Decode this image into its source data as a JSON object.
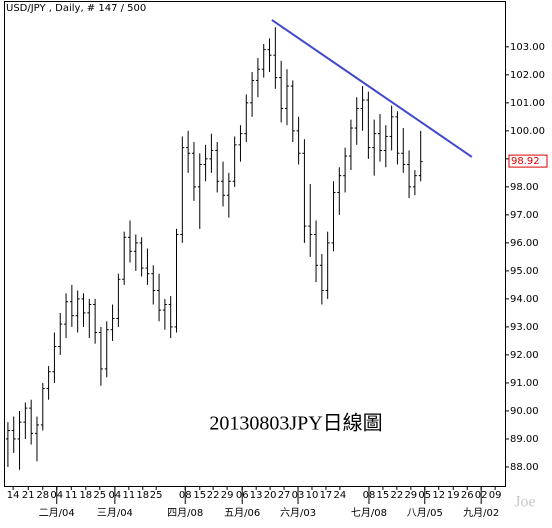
{
  "chart_data": {
    "type": "ohlc",
    "title": "USD/JPY , Daily, # 147 / 500",
    "annotation": "20130803JPY日線圖",
    "watermark": "Joe",
    "color": "#000000",
    "trend_color": "#3f48cc",
    "last_price_color": "#e00000",
    "ohlc": [
      [
        89.0,
        89.6,
        88.0,
        89.3
      ],
      [
        89.3,
        89.8,
        88.5,
        89.0
      ],
      [
        89.0,
        90.0,
        87.9,
        89.6
      ],
      [
        89.6,
        90.3,
        89.0,
        90.1
      ],
      [
        90.1,
        90.4,
        88.8,
        89.2
      ],
      [
        89.2,
        89.8,
        88.2,
        89.5
      ],
      [
        89.5,
        91.0,
        89.3,
        90.8
      ],
      [
        90.8,
        91.6,
        90.4,
        91.4
      ],
      [
        91.4,
        92.8,
        91.0,
        92.3
      ],
      [
        92.3,
        93.5,
        92.0,
        93.1
      ],
      [
        93.1,
        94.2,
        92.6,
        93.9
      ],
      [
        93.9,
        94.5,
        93.0,
        93.4
      ],
      [
        93.4,
        94.3,
        92.8,
        94.0
      ],
      [
        94.0,
        94.2,
        93.0,
        93.5
      ],
      [
        93.5,
        94.0,
        92.6,
        93.8
      ],
      [
        93.8,
        94.0,
        92.4,
        92.8
      ],
      [
        92.8,
        93.0,
        90.9,
        91.5
      ],
      [
        91.5,
        93.2,
        91.2,
        92.9
      ],
      [
        92.9,
        93.8,
        92.5,
        93.3
      ],
      [
        93.3,
        94.9,
        93.0,
        94.7
      ],
      [
        94.7,
        96.4,
        94.5,
        96.2
      ],
      [
        96.2,
        96.8,
        95.3,
        95.7
      ],
      [
        95.7,
        96.3,
        95.0,
        96.0
      ],
      [
        96.0,
        96.2,
        94.8,
        95.1
      ],
      [
        95.1,
        95.8,
        94.5,
        94.9
      ],
      [
        94.9,
        95.2,
        93.8,
        94.3
      ],
      [
        94.3,
        94.9,
        93.2,
        93.6
      ],
      [
        93.6,
        94.0,
        92.9,
        93.8
      ],
      [
        93.8,
        94.1,
        92.6,
        93.0
      ],
      [
        93.0,
        96.5,
        92.8,
        96.3
      ],
      [
        96.3,
        99.8,
        96.0,
        99.4
      ],
      [
        99.4,
        100.0,
        98.5,
        99.2
      ],
      [
        99.2,
        99.6,
        97.5,
        98.0
      ],
      [
        98.0,
        99.2,
        96.5,
        98.8
      ],
      [
        98.8,
        99.5,
        98.2,
        99.0
      ],
      [
        99.0,
        99.9,
        98.5,
        99.3
      ],
      [
        99.3,
        99.6,
        97.8,
        98.2
      ],
      [
        98.2,
        98.9,
        97.3,
        97.7
      ],
      [
        97.7,
        98.5,
        96.9,
        98.2
      ],
      [
        98.2,
        99.8,
        98.0,
        99.5
      ],
      [
        99.5,
        100.2,
        98.9,
        99.9
      ],
      [
        99.9,
        101.3,
        99.6,
        101.0
      ],
      [
        101.0,
        102.1,
        100.5,
        101.8
      ],
      [
        101.8,
        102.6,
        101.2,
        102.2
      ],
      [
        102.2,
        103.1,
        101.9,
        102.9
      ],
      [
        102.9,
        103.3,
        102.1,
        102.7
      ],
      [
        102.7,
        103.7,
        101.5,
        101.9
      ],
      [
        101.9,
        102.5,
        100.3,
        100.8
      ],
      [
        100.8,
        102.2,
        100.2,
        101.6
      ],
      [
        101.6,
        101.8,
        99.6,
        100.0
      ],
      [
        100.0,
        100.5,
        98.8,
        99.2
      ],
      [
        99.2,
        99.7,
        96.0,
        96.6
      ],
      [
        96.6,
        98.1,
        95.5,
        96.3
      ],
      [
        96.3,
        96.8,
        94.6,
        95.2
      ],
      [
        95.2,
        95.6,
        93.8,
        94.3
      ],
      [
        94.3,
        96.4,
        94.0,
        96.0
      ],
      [
        96.0,
        98.2,
        95.7,
        97.8
      ],
      [
        97.8,
        98.7,
        97.0,
        98.4
      ],
      [
        98.4,
        99.4,
        97.8,
        99.1
      ],
      [
        99.1,
        100.4,
        98.6,
        100.1
      ],
      [
        100.1,
        101.2,
        99.5,
        100.8
      ],
      [
        100.8,
        101.6,
        100.0,
        101.1
      ],
      [
        101.1,
        101.4,
        99.0,
        99.4
      ],
      [
        99.4,
        100.4,
        98.4,
        99.9
      ],
      [
        99.9,
        100.6,
        98.9,
        99.3
      ],
      [
        99.3,
        100.2,
        98.7,
        99.8
      ],
      [
        99.8,
        100.9,
        99.3,
        100.5
      ],
      [
        100.5,
        100.7,
        98.8,
        99.2
      ],
      [
        99.2,
        100.1,
        98.5,
        98.8
      ],
      [
        98.8,
        99.3,
        97.6,
        98.0
      ],
      [
        98.0,
        98.6,
        97.7,
        98.4
      ],
      [
        98.4,
        100.0,
        98.2,
        98.9
      ]
    ],
    "last_price": 98.92,
    "trendline": [
      [
        45.4,
        103.96
      ],
      [
        79.8,
        99.07
      ]
    ],
    "xlim": [
      -0.5,
      85.5
    ],
    "ylim": [
      87.32,
      104.6
    ],
    "yticks": [
      {
        "value": 88,
        "label": "88.00"
      },
      {
        "value": 89,
        "label": "89.00"
      },
      {
        "value": 90,
        "label": "90.00"
      },
      {
        "value": 91,
        "label": "91.00"
      },
      {
        "value": 92,
        "label": "92.00"
      },
      {
        "value": 93,
        "label": "93.00"
      },
      {
        "value": 94,
        "label": "94.00"
      },
      {
        "value": 95,
        "label": "95.00"
      },
      {
        "value": 96,
        "label": "96.00"
      },
      {
        "value": 97,
        "label": "97.00"
      },
      {
        "value": 98,
        "label": "98.00"
      },
      {
        "value": 99,
        "label": "99.00"
      },
      {
        "value": 100,
        "label": "100.00"
      },
      {
        "value": 101,
        "label": "101.00"
      },
      {
        "value": 102,
        "label": "102.00"
      },
      {
        "value": 103,
        "label": "103.00"
      }
    ],
    "xticks": [
      {
        "value": 0.9,
        "label": "14"
      },
      {
        "value": 3.5,
        "label": "21"
      },
      {
        "value": 6.0,
        "label": "28"
      },
      {
        "value": 8.4,
        "label": "04"
      },
      {
        "value": 10.9,
        "label": "11"
      },
      {
        "value": 13.4,
        "label": "18"
      },
      {
        "value": 15.8,
        "label": "25"
      },
      {
        "value": 18.4,
        "label": "04"
      },
      {
        "value": 20.8,
        "label": "11"
      },
      {
        "value": 23.2,
        "label": "18"
      },
      {
        "value": 25.5,
        "label": "25"
      },
      {
        "value": 30.5,
        "label": "08"
      },
      {
        "value": 33.0,
        "label": "15"
      },
      {
        "value": 35.3,
        "label": "22"
      },
      {
        "value": 37.7,
        "label": "29"
      },
      {
        "value": 40.3,
        "label": "06"
      },
      {
        "value": 42.7,
        "label": "13"
      },
      {
        "value": 45.1,
        "label": "20"
      },
      {
        "value": 47.5,
        "label": "27"
      },
      {
        "value": 49.9,
        "label": "03"
      },
      {
        "value": 52.3,
        "label": "10"
      },
      {
        "value": 54.7,
        "label": "17"
      },
      {
        "value": 57.1,
        "label": "24"
      },
      {
        "value": 62.1,
        "label": "08"
      },
      {
        "value": 64.5,
        "label": "15"
      },
      {
        "value": 66.9,
        "label": "22"
      },
      {
        "value": 69.3,
        "label": "29"
      },
      {
        "value": 71.7,
        "label": "05"
      },
      {
        "value": 74.1,
        "label": "12"
      },
      {
        "value": 76.6,
        "label": "19"
      },
      {
        "value": 79.0,
        "label": "26"
      },
      {
        "value": 81.4,
        "label": "02"
      },
      {
        "value": 83.8,
        "label": "09"
      }
    ],
    "month_ticks": [
      {
        "value": 8.4,
        "label": "二月/04"
      },
      {
        "value": 18.4,
        "label": "三月/04"
      },
      {
        "value": 30.5,
        "label": "四月/08"
      },
      {
        "value": 40.3,
        "label": "五月/06"
      },
      {
        "value": 49.9,
        "label": "六月/03"
      },
      {
        "value": 62.1,
        "label": "七月/08"
      },
      {
        "value": 71.7,
        "label": "八月/05"
      },
      {
        "value": 81.4,
        "label": "九月/02"
      }
    ]
  }
}
